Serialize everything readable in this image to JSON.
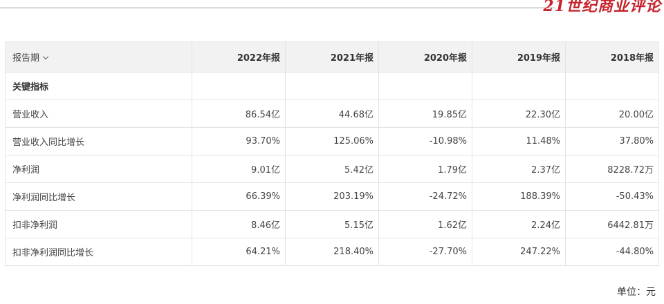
{
  "brand": {
    "logo_text": "21世纪商业评论",
    "accent_color": "#c8232c"
  },
  "table": {
    "header": {
      "period_label": "报告期",
      "columns": [
        "2022年报",
        "2021年报",
        "2020年报",
        "2019年报",
        "2018年报"
      ]
    },
    "section_label": "关键指标",
    "rows": [
      {
        "label": "营业收入",
        "values": [
          "86.54亿",
          "44.68亿",
          "19.85亿",
          "22.30亿",
          "20.00亿"
        ]
      },
      {
        "label": "营业收入同比增长",
        "values": [
          "93.70%",
          "125.06%",
          "-10.98%",
          "11.48%",
          "37.80%"
        ]
      },
      {
        "label": "净利润",
        "values": [
          "9.01亿",
          "5.42亿",
          "1.79亿",
          "2.37亿",
          "8228.72万"
        ]
      },
      {
        "label": "净利润同比增长",
        "values": [
          "66.39%",
          "203.19%",
          "-24.72%",
          "188.39%",
          "-50.43%"
        ]
      },
      {
        "label": "扣非净利润",
        "values": [
          "8.46亿",
          "5.15亿",
          "1.62亿",
          "2.24亿",
          "6442.81万"
        ]
      },
      {
        "label": "扣非净利润同比增长",
        "values": [
          "64.21%",
          "218.40%",
          "-27.70%",
          "247.22%",
          "-44.80%"
        ]
      }
    ]
  },
  "unit_note": "单位：元"
}
